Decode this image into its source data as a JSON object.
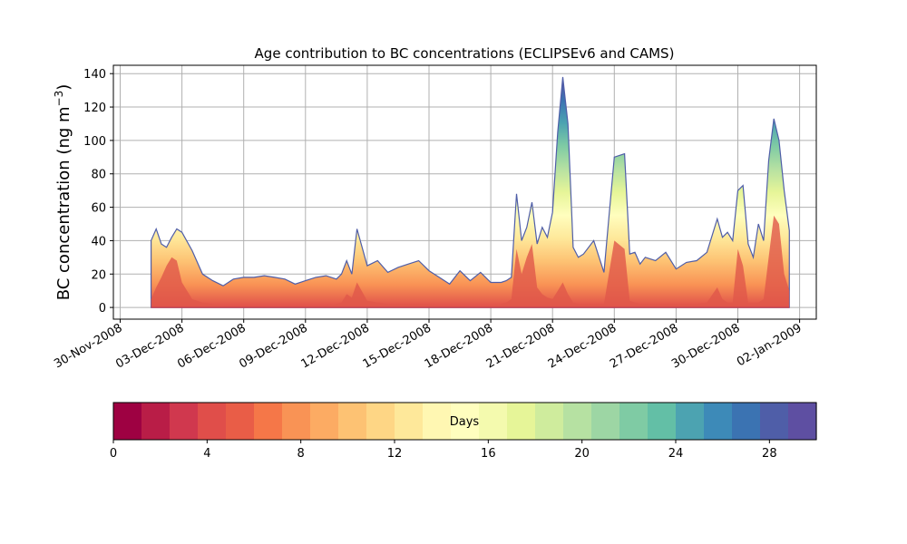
{
  "chart_data": {
    "type": "area",
    "title": "Age contribution to BC concentrations (ECLIPSEv6 and CAMS)",
    "ylabel": "BC concentration (ng m",
    "ylabel_sup": "−3",
    "ylabel_close": ")",
    "xlabel": "",
    "ylim": [
      -7,
      145
    ],
    "yticks": [
      0,
      20,
      40,
      60,
      80,
      100,
      120,
      140
    ],
    "x_start_date": "2008-11-30",
    "xticks": [
      "30-Nov-2008",
      "03-Dec-2008",
      "06-Dec-2008",
      "09-Dec-2008",
      "12-Dec-2008",
      "15-Dec-2008",
      "18-Dec-2008",
      "21-Dec-2008",
      "24-Dec-2008",
      "27-Dec-2008",
      "30-Dec-2008",
      "02-Jan-2009"
    ],
    "grid": true,
    "x": [
      "2008-12-01 12:00",
      "2008-12-01 18:00",
      "2008-12-02 00:00",
      "2008-12-02 06:00",
      "2008-12-02 12:00",
      "2008-12-02 18:00",
      "2008-12-03 00:00",
      "2008-12-03 12:00",
      "2008-12-04 00:00",
      "2008-12-04 12:00",
      "2008-12-05 00:00",
      "2008-12-05 12:00",
      "2008-12-06 00:00",
      "2008-12-06 12:00",
      "2008-12-07 00:00",
      "2008-12-07 12:00",
      "2008-12-08 00:00",
      "2008-12-08 12:00",
      "2008-12-09 00:00",
      "2008-12-09 12:00",
      "2008-12-10 00:00",
      "2008-12-10 12:00",
      "2008-12-10 18:00",
      "2008-12-11 00:00",
      "2008-12-11 06:00",
      "2008-12-11 12:00",
      "2008-12-12 00:00",
      "2008-12-12 12:00",
      "2008-12-13 00:00",
      "2008-12-13 12:00",
      "2008-12-14 00:00",
      "2008-12-14 12:00",
      "2008-12-15 00:00",
      "2008-12-15 12:00",
      "2008-12-16 00:00",
      "2008-12-16 12:00",
      "2008-12-17 00:00",
      "2008-12-17 12:00",
      "2008-12-18 00:00",
      "2008-12-18 12:00",
      "2008-12-18 18:00",
      "2008-12-19 00:00",
      "2008-12-19 06:00",
      "2008-12-19 12:00",
      "2008-12-19 18:00",
      "2008-12-20 00:00",
      "2008-12-20 06:00",
      "2008-12-20 12:00",
      "2008-12-20 18:00",
      "2008-12-21 00:00",
      "2008-12-21 06:00",
      "2008-12-21 12:00",
      "2008-12-21 18:00",
      "2008-12-22 00:00",
      "2008-12-22 06:00",
      "2008-12-22 12:00",
      "2008-12-23 00:00",
      "2008-12-23 12:00",
      "2008-12-24 00:00",
      "2008-12-24 12:00",
      "2008-12-24 18:00",
      "2008-12-25 00:00",
      "2008-12-25 06:00",
      "2008-12-25 12:00",
      "2008-12-26 00:00",
      "2008-12-26 12:00",
      "2008-12-27 00:00",
      "2008-12-27 12:00",
      "2008-12-28 00:00",
      "2008-12-28 12:00",
      "2008-12-29 00:00",
      "2008-12-29 06:00",
      "2008-12-29 12:00",
      "2008-12-29 18:00",
      "2008-12-30 00:00",
      "2008-12-30 06:00",
      "2008-12-30 12:00",
      "2008-12-30 18:00",
      "2008-12-31 00:00",
      "2008-12-31 06:00",
      "2008-12-31 12:00",
      "2008-12-31 18:00",
      "2009-01-01 00:00",
      "2009-01-01 06:00",
      "2009-01-01 12:00"
    ],
    "total": [
      40,
      47,
      38,
      36,
      42,
      47,
      45,
      34,
      20,
      16,
      13,
      17,
      18,
      18,
      19,
      18,
      17,
      14,
      16,
      18,
      19,
      17,
      20,
      28,
      20,
      47,
      25,
      28,
      21,
      24,
      26,
      28,
      22,
      18,
      14,
      22,
      16,
      21,
      15,
      15,
      16,
      18,
      68,
      40,
      48,
      63,
      38,
      48,
      42,
      57,
      105,
      138,
      110,
      36,
      30,
      32,
      40,
      21,
      90,
      92,
      32,
      33,
      26,
      30,
      28,
      33,
      23,
      27,
      28,
      33,
      53,
      42,
      45,
      40,
      70,
      73,
      38,
      30,
      50,
      40,
      88,
      113,
      100,
      70,
      46
    ],
    "young": [
      5,
      12,
      18,
      25,
      30,
      28,
      15,
      5,
      3,
      2,
      1,
      1,
      1,
      1,
      1,
      1,
      1,
      1,
      1,
      1,
      1,
      2,
      3,
      8,
      6,
      15,
      4,
      3,
      2,
      2,
      2,
      2,
      2,
      1,
      1,
      1,
      1,
      1,
      1,
      2,
      3,
      5,
      35,
      20,
      30,
      38,
      12,
      8,
      6,
      5,
      10,
      15,
      8,
      3,
      2,
      2,
      2,
      2,
      40,
      35,
      4,
      3,
      2,
      2,
      2,
      2,
      2,
      2,
      2,
      3,
      12,
      5,
      3,
      3,
      35,
      25,
      3,
      3,
      3,
      5,
      30,
      55,
      50,
      20,
      10
    ],
    "colorbar": {
      "label": "Days",
      "range": [
        0,
        30
      ],
      "ticks": [
        0,
        4,
        8,
        12,
        16,
        20,
        24,
        28
      ],
      "colors": [
        "#9e0142",
        "#b91d47",
        "#d0384e",
        "#e04e4a",
        "#e95d47",
        "#f57748",
        "#f99355",
        "#fcab63",
        "#fdc273",
        "#fed685",
        "#fee89a",
        "#fff7b2",
        "#fffebe",
        "#f4faae",
        "#e6f598",
        "#cfec9d",
        "#b6e1a2",
        "#9dd6a4",
        "#7fcba4",
        "#63bfa6",
        "#4ca3b1",
        "#3d8ab8",
        "#3b73b2",
        "#4f5ea8",
        "#5e4fa2"
      ]
    }
  }
}
